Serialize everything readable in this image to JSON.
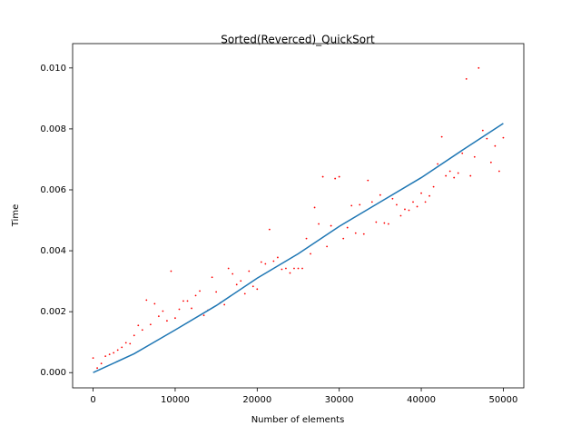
{
  "chart_data": {
    "type": "scatter",
    "title": "Sorted(Reverced)_QuickSort",
    "x_label": "Number of elements",
    "y_label": "Time",
    "xlim": [
      -2500,
      52500
    ],
    "ylim": [
      -0.0005,
      0.0108
    ],
    "xticks": [
      0,
      10000,
      20000,
      30000,
      40000,
      50000
    ],
    "yticks": [
      {
        "value": 0,
        "label": "0.000"
      },
      {
        "value": 0.002,
        "label": "0.002"
      },
      {
        "value": 0.004,
        "label": "0.004"
      },
      {
        "value": 0.006,
        "label": "0.006"
      },
      {
        "value": 0.008,
        "label": "0.008"
      },
      {
        "value": 0.01,
        "label": "0.010"
      }
    ],
    "grid": false,
    "series": [
      {
        "mode": "markers",
        "color": "#ff0000",
        "x": [
          0,
          500,
          1000,
          1500,
          2000,
          2500,
          3000,
          3500,
          4000,
          4500,
          5000,
          5500,
          6000,
          6500,
          7000,
          7500,
          8000,
          8500,
          9000,
          9500,
          10000,
          10500,
          11000,
          11500,
          12000,
          12500,
          13000,
          13500,
          14000,
          14500,
          15000,
          15500,
          16000,
          16500,
          17000,
          17500,
          18000,
          18500,
          19000,
          19500,
          20000,
          20500,
          21000,
          21500,
          22000,
          22500,
          23000,
          23500,
          24000,
          24500,
          25000,
          25500,
          26000,
          26500,
          27000,
          27500,
          28000,
          28500,
          29000,
          29500,
          30000,
          30500,
          31000,
          31500,
          32000,
          32500,
          33000,
          33500,
          34000,
          34500,
          35000,
          35500,
          36000,
          36500,
          37000,
          37500,
          38000,
          38500,
          39000,
          39500,
          40000,
          40500,
          41000,
          41500,
          42000,
          42500,
          43000,
          43500,
          44000,
          44500,
          45000,
          45500,
          46000,
          46500,
          47000,
          47500,
          48000,
          48500,
          49000,
          49500,
          50000
        ],
        "values": [
          0.00048,
          0.00015,
          0.0003,
          0.00054,
          0.0006,
          0.00065,
          0.00074,
          0.00083,
          0.00098,
          0.00095,
          0.00122,
          0.00155,
          0.0014,
          0.00238,
          0.00158,
          0.00226,
          0.00185,
          0.00202,
          0.0017,
          0.00333,
          0.00179,
          0.00208,
          0.00235,
          0.00235,
          0.00211,
          0.00253,
          0.00268,
          0.00188,
          0.00205,
          0.00313,
          0.00265,
          0.00229,
          0.00223,
          0.00342,
          0.00324,
          0.00289,
          0.00301,
          0.00259,
          0.00333,
          0.00283,
          0.00274,
          0.00363,
          0.00357,
          0.0047,
          0.00366,
          0.00378,
          0.00339,
          0.00342,
          0.00327,
          0.00342,
          0.00342,
          0.00342,
          0.0044,
          0.0039,
          0.00542,
          0.00488,
          0.00643,
          0.00414,
          0.00482,
          0.00637,
          0.00643,
          0.0044,
          0.00476,
          0.00548,
          0.00458,
          0.00551,
          0.00455,
          0.00631,
          0.0056,
          0.00494,
          0.00583,
          0.00491,
          0.00488,
          0.00571,
          0.00551,
          0.00515,
          0.00536,
          0.00533,
          0.0056,
          0.00545,
          0.00589,
          0.0056,
          0.0058,
          0.0061,
          0.00685,
          0.00774,
          0.00646,
          0.00661,
          0.0064,
          0.00655,
          0.0072,
          0.00964,
          0.00646,
          0.00708,
          0.01,
          0.00795,
          0.00768,
          0.0069,
          0.00744,
          0.00661,
          0.00771
        ]
      },
      {
        "mode": "line",
        "color": "#1f77b4",
        "x": [
          0,
          5000,
          10000,
          15000,
          20000,
          25000,
          30000,
          35000,
          40000,
          45000,
          50000
        ],
        "values": [
          0,
          0.00062,
          0.0014,
          0.0022,
          0.0031,
          0.0039,
          0.0048,
          0.0056,
          0.0064,
          0.0073,
          0.00818
        ]
      }
    ]
  }
}
